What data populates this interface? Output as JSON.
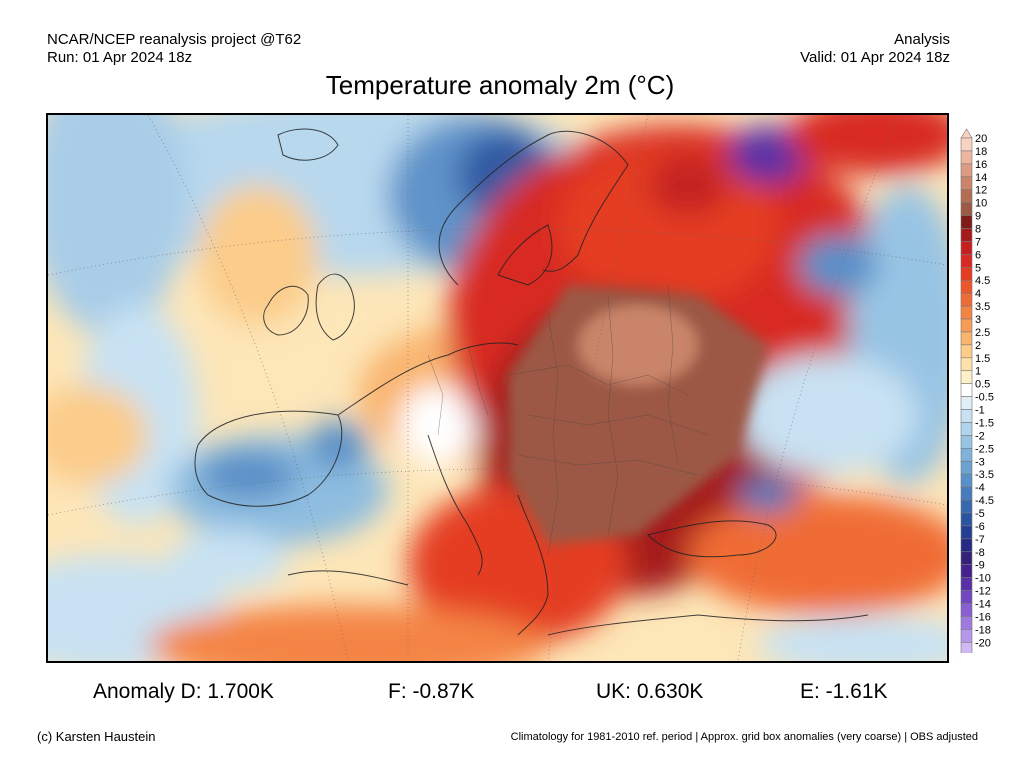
{
  "header": {
    "left_line1": "NCAR/NCEP reanalysis project @T62",
    "left_line2": "Run: 01 Apr 2024 18z",
    "right_line1": "Analysis",
    "right_line2": "Valid: 01 Apr 2024 18z"
  },
  "title": "Temperature anomaly 2m (°C)",
  "legend": {
    "labels": [
      "20",
      "18",
      "16",
      "14",
      "12",
      "10",
      "9",
      "8",
      "7",
      "6",
      "5",
      "4.5",
      "4",
      "3.5",
      "3",
      "2.5",
      "2",
      "1.5",
      "1",
      "0.5",
      "-0.5",
      "-1",
      "-1.5",
      "-2",
      "-2.5",
      "-3",
      "-3.5",
      "-4",
      "-4.5",
      "-5",
      "-6",
      "-7",
      "-8",
      "-9",
      "-10",
      "-12",
      "-14",
      "-16",
      "-18",
      "-20"
    ],
    "colors": [
      "#f7d3c0",
      "#edb69f",
      "#dc9c83",
      "#c98469",
      "#b46d53",
      "#9c5944",
      "#7f1b16",
      "#a51a1a",
      "#c42020",
      "#d82a22",
      "#e43d24",
      "#ec562c",
      "#f06c36",
      "#f48444",
      "#f79c56",
      "#f9b46e",
      "#fbcc8a",
      "#fde1a8",
      "#fdf0c8",
      "#ffffff",
      "#e0eef8",
      "#c8e2f3",
      "#b0d4ec",
      "#98c4e4",
      "#80b3db",
      "#6ba2d2",
      "#5890c8",
      "#467cbd",
      "#3668af",
      "#2a54a0",
      "#243f91",
      "#252a84",
      "#352178",
      "#46208e",
      "#5a30a6",
      "#7047be",
      "#875fd1",
      "#9e7ade",
      "#b698ea",
      "#cfb8f3"
    ]
  },
  "stats": [
    {
      "name": "stat-anomaly-d",
      "text": "Anomaly D: 1.700K"
    },
    {
      "name": "stat-f",
      "text": "F: -0.87K"
    },
    {
      "name": "stat-uk",
      "text": "UK: 0.630K"
    },
    {
      "name": "stat-e",
      "text": "E: -1.61K"
    }
  ],
  "footer": {
    "left": "(c) Karsten Haustein",
    "right": "Climatology for 1981-2010 ref. period | Approx. grid box anomalies (very coarse) | OBS adjusted"
  }
}
